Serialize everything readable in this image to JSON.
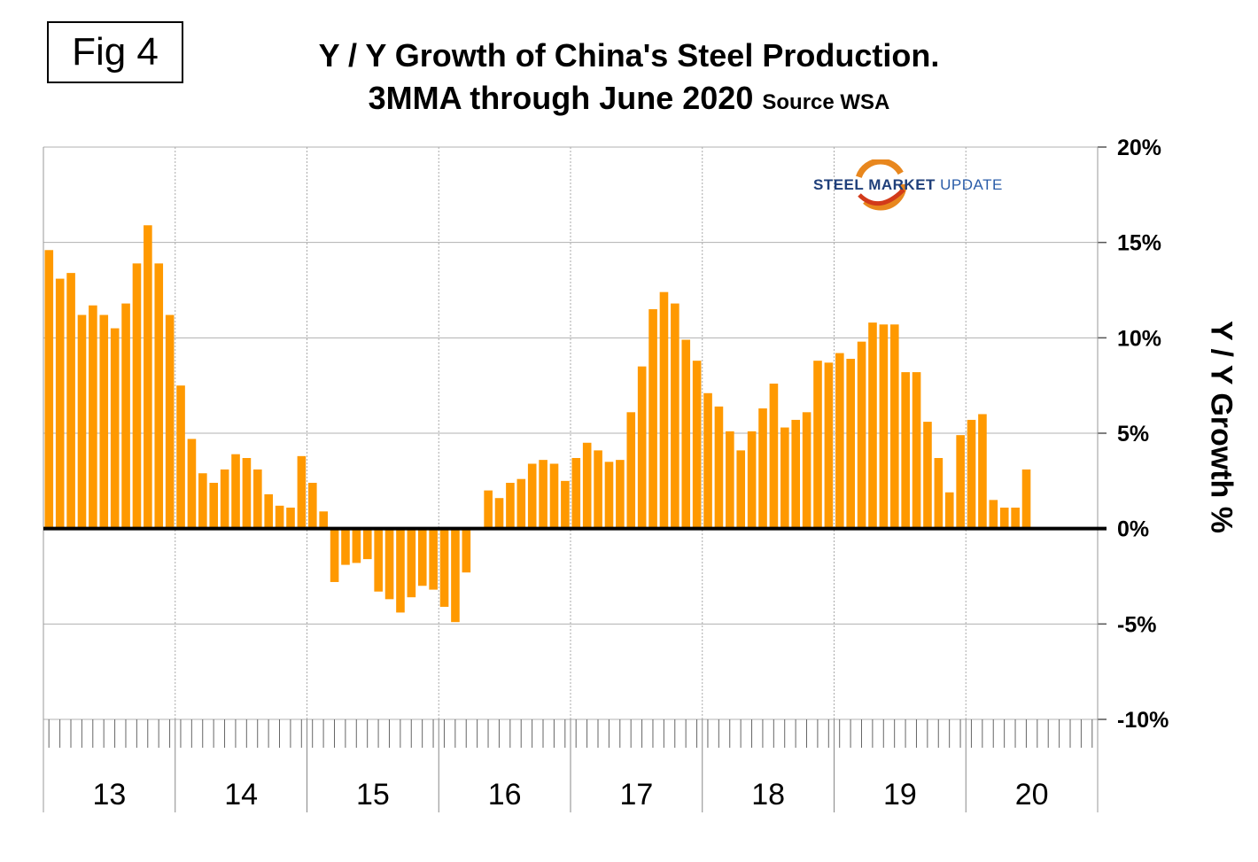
{
  "fig_label": "Fig 4",
  "logo_text": {
    "part1": "STEEL MARKET",
    "part2": "UPDATE"
  },
  "colors": {
    "bar": "#FF9900",
    "grid": "#b0b0b0",
    "zero": "#000000"
  },
  "chart_data": {
    "type": "bar",
    "title": "Y / Y Growth of China's Steel Production.",
    "subtitle": "3MMA through June 2020",
    "source": "Source WSA",
    "ylabel": "Y / Y Growth %",
    "xlabel": "",
    "ylim": [
      -10,
      20
    ],
    "yticks": [
      20,
      15,
      10,
      5,
      0,
      -5,
      -10
    ],
    "ytick_labels": [
      "20%",
      "15%",
      "10%",
      "5%",
      "0%",
      "-5%",
      "-10%"
    ],
    "year_labels": [
      "13",
      "14",
      "15",
      "16",
      "17",
      "18",
      "19",
      "20"
    ],
    "start": "2013-01",
    "end": "2020-06",
    "frequency": "monthly",
    "values": [
      14.6,
      13.1,
      13.4,
      11.2,
      11.7,
      11.2,
      10.5,
      11.8,
      13.9,
      15.9,
      13.9,
      11.2,
      7.5,
      4.7,
      2.9,
      2.4,
      3.1,
      3.9,
      3.7,
      3.1,
      1.8,
      1.2,
      1.1,
      3.8,
      2.4,
      0.9,
      -2.8,
      -1.9,
      -1.8,
      -1.6,
      -3.3,
      -3.7,
      -4.4,
      -3.6,
      -3.0,
      -3.2,
      -4.1,
      -4.9,
      -2.3,
      0.0,
      2.0,
      1.6,
      2.4,
      2.6,
      3.4,
      3.6,
      3.4,
      2.5,
      3.7,
      4.5,
      4.1,
      3.5,
      3.6,
      6.1,
      8.5,
      11.5,
      12.4,
      11.8,
      9.9,
      8.8,
      7.1,
      6.4,
      5.1,
      4.1,
      5.1,
      6.3,
      7.6,
      5.3,
      5.7,
      6.1,
      8.8,
      8.7,
      9.2,
      8.9,
      9.8,
      10.8,
      10.7,
      10.7,
      8.2,
      8.2,
      5.6,
      3.7,
      1.9,
      4.9,
      5.7,
      6.0,
      1.5,
      1.1,
      1.1,
      3.1
    ]
  }
}
